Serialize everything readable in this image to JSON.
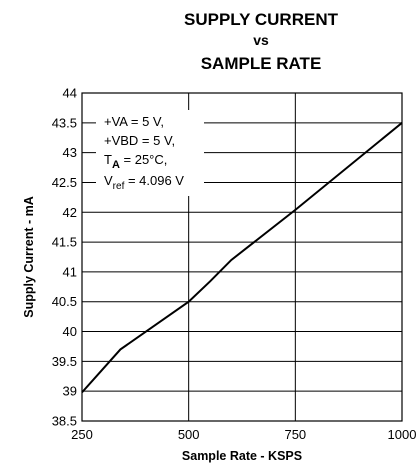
{
  "chart_data": {
    "type": "line",
    "title_lines": [
      "SUPPLY CURRENT",
      "vs",
      "SAMPLE RATE"
    ],
    "xlabel": "Sample Rate - KSPS",
    "ylabel": "Supply Current - mA",
    "xlim": [
      250,
      1000
    ],
    "ylim": [
      38.5,
      44
    ],
    "x_ticks": [
      "250",
      "500",
      "750",
      "1000"
    ],
    "y_ticks": [
      "38.5",
      "39",
      "39.5",
      "40",
      "40.5",
      "41",
      "41.5",
      "42",
      "42.5",
      "43",
      "43.5",
      "44"
    ],
    "grid": true,
    "annotation": {
      "line1": "+VA = 5 V,",
      "line2": "+VBD = 5 V,",
      "line3_prefix": "T",
      "line3_sub": "A",
      "line3_suffix": " = 25°C,",
      "line4_prefix": "V",
      "line4_sub": "ref",
      "line4_suffix": " = 4.096 V"
    },
    "series": [
      {
        "x": [
          250,
          340,
          500,
          550,
          600,
          750,
          1000
        ],
        "y": [
          38.98,
          39.7,
          40.5,
          40.84,
          41.2,
          42.04,
          43.5
        ]
      }
    ],
    "colors": {
      "line": "#000000",
      "grid": "#000000",
      "background": "#ffffff"
    }
  }
}
